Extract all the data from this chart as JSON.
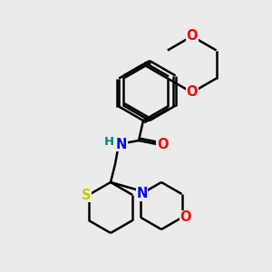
{
  "background_color": "#ebebeb",
  "atom_colors": {
    "C": "#000000",
    "N": "#0000ff",
    "O": "#ff0000",
    "S": "#cccc00",
    "H": "#008080"
  },
  "line_color": "#000000",
  "line_width": 1.8,
  "font_size": 10.5
}
